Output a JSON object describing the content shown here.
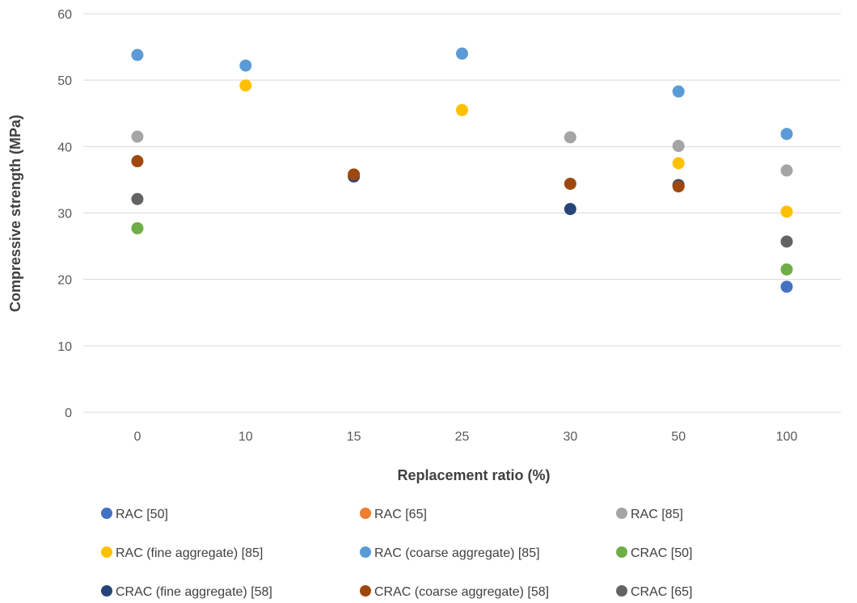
{
  "chart_data": {
    "type": "scatter",
    "title": "",
    "xlabel": "Replacement ratio (%)",
    "ylabel": "Compressive strength (MPa)",
    "categories": [
      "0",
      "10",
      "15",
      "25",
      "30",
      "50",
      "100"
    ],
    "ylim": [
      0,
      60
    ],
    "yticks": [
      0,
      10,
      20,
      30,
      40,
      50,
      60
    ],
    "grid": true,
    "legend_position": "bottom",
    "series": [
      {
        "name": "RAC [50]",
        "color": "#4472c4",
        "values": [
          null,
          null,
          null,
          null,
          null,
          null,
          18.9
        ]
      },
      {
        "name": "RAC [65]",
        "color": "#ed7d31",
        "values": [
          null,
          null,
          null,
          null,
          null,
          null,
          null
        ]
      },
      {
        "name": "RAC [85]",
        "color": "#a5a5a5",
        "values": [
          41.5,
          null,
          null,
          null,
          41.4,
          40.1,
          36.4
        ]
      },
      {
        "name": "RAC (fine aggregate) [85]",
        "color": "#ffc000",
        "values": [
          null,
          49.2,
          null,
          45.5,
          null,
          37.5,
          30.2
        ]
      },
      {
        "name": "RAC (coarse aggregate) [85]",
        "color": "#5b9bd5",
        "values": [
          53.8,
          52.2,
          null,
          54.0,
          null,
          48.3,
          41.9
        ]
      },
      {
        "name": "CRAC [50]",
        "color": "#70ad47",
        "values": [
          27.7,
          null,
          null,
          null,
          null,
          null,
          21.5
        ]
      },
      {
        "name": "CRAC (fine aggregate) [58]",
        "color": "#264478",
        "values": [
          null,
          null,
          35.5,
          null,
          30.6,
          34.2,
          null
        ]
      },
      {
        "name": "CRAC (coarse aggregate) [58]",
        "color": "#9e480e",
        "values": [
          37.8,
          null,
          35.8,
          null,
          34.4,
          34.0,
          null
        ]
      },
      {
        "name": "CRAC [65]",
        "color": "#636363",
        "values": [
          32.1,
          null,
          null,
          null,
          null,
          null,
          25.7
        ]
      }
    ]
  }
}
